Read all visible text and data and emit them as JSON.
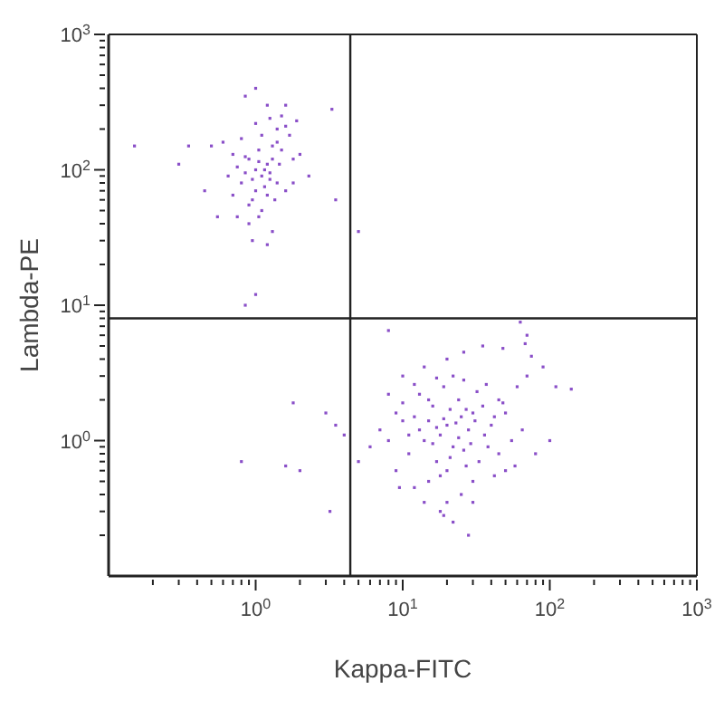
{
  "chart_data": {
    "type": "scatter",
    "xlabel": "Kappa-FITC",
    "ylabel": "Lambda-PE",
    "log": "xy",
    "marker": "square",
    "xlim": [
      0.1,
      1000
    ],
    "ylim": [
      0.1,
      1000
    ],
    "xticks": [
      {
        "value": 0.2,
        "label": null
      },
      {
        "value": 0.3,
        "label": null
      },
      {
        "value": 0.4,
        "label": null
      },
      {
        "value": 0.5,
        "label": null
      },
      {
        "value": 0.6,
        "label": null
      },
      {
        "value": 0.7,
        "label": null
      },
      {
        "value": 0.8,
        "label": null
      },
      {
        "value": 0.9,
        "label": null
      },
      {
        "value": 1,
        "label": "10$^{0}$"
      },
      {
        "value": 2,
        "label": null
      },
      {
        "value": 3,
        "label": null
      },
      {
        "value": 4,
        "label": null
      },
      {
        "value": 5,
        "label": null
      },
      {
        "value": 6,
        "label": null
      },
      {
        "value": 7,
        "label": null
      },
      {
        "value": 8,
        "label": null
      },
      {
        "value": 9,
        "label": null
      },
      {
        "value": 10,
        "label": "10$^{1}$"
      },
      {
        "value": 20,
        "label": null
      },
      {
        "value": 30,
        "label": null
      },
      {
        "value": 40,
        "label": null
      },
      {
        "value": 50,
        "label": null
      },
      {
        "value": 60,
        "label": null
      },
      {
        "value": 70,
        "label": null
      },
      {
        "value": 80,
        "label": null
      },
      {
        "value": 90,
        "label": null
      },
      {
        "value": 100,
        "label": "10$^{2}$"
      },
      {
        "value": 200,
        "label": null
      },
      {
        "value": 300,
        "label": null
      },
      {
        "value": 400,
        "label": null
      },
      {
        "value": 500,
        "label": null
      },
      {
        "value": 600,
        "label": null
      },
      {
        "value": 700,
        "label": null
      },
      {
        "value": 800,
        "label": null
      },
      {
        "value": 900,
        "label": null
      },
      {
        "value": 1000,
        "label": "10$^{3}$"
      }
    ],
    "yticks": [
      {
        "value": 0.2,
        "label": null
      },
      {
        "value": 0.3,
        "label": null
      },
      {
        "value": 0.4,
        "label": null
      },
      {
        "value": 0.5,
        "label": null
      },
      {
        "value": 0.6,
        "label": null
      },
      {
        "value": 0.7,
        "label": null
      },
      {
        "value": 0.8,
        "label": null
      },
      {
        "value": 0.9,
        "label": null
      },
      {
        "value": 1,
        "label": "10$^{0}$"
      },
      {
        "value": 2,
        "label": null
      },
      {
        "value": 3,
        "label": null
      },
      {
        "value": 4,
        "label": null
      },
      {
        "value": 5,
        "label": null
      },
      {
        "value": 6,
        "label": null
      },
      {
        "value": 7,
        "label": null
      },
      {
        "value": 8,
        "label": null
      },
      {
        "value": 9,
        "label": null
      },
      {
        "value": 10,
        "label": "10$^{1}$"
      },
      {
        "value": 20,
        "label": null
      },
      {
        "value": 30,
        "label": null
      },
      {
        "value": 40,
        "label": null
      },
      {
        "value": 50,
        "label": null
      },
      {
        "value": 60,
        "label": null
      },
      {
        "value": 70,
        "label": null
      },
      {
        "value": 80,
        "label": null
      },
      {
        "value": 90,
        "label": null
      },
      {
        "value": 100,
        "label": "10$^{2}$"
      },
      {
        "value": 200,
        "label": null
      },
      {
        "value": 300,
        "label": null
      },
      {
        "value": 400,
        "label": null
      },
      {
        "value": 500,
        "label": null
      },
      {
        "value": 600,
        "label": null
      },
      {
        "value": 700,
        "label": null
      },
      {
        "value": 800,
        "label": null
      },
      {
        "value": 900,
        "label": null
      },
      {
        "value": 1000,
        "label": "10$^{3}$"
      }
    ],
    "ref_lines": [
      {
        "axis": "x",
        "value": 4.4,
        "color": "#222222"
      },
      {
        "axis": "y",
        "value": 8,
        "color": "#222222"
      }
    ],
    "series": [
      {
        "color": "#8a4fc8",
        "x": [
          1.0,
          0.9,
          1.1,
          1.2,
          0.8,
          1.3,
          0.7,
          1.0,
          1.4,
          1.5,
          0.95,
          1.05,
          0.85,
          1.15,
          0.75,
          1.25,
          1.6,
          1.7,
          0.6,
          0.5,
          0.55,
          1.1,
          0.9,
          1.3,
          1.2,
          1.0,
          0.85,
          1.8,
          2.0,
          0.65,
          0.7,
          1.35,
          1.45,
          0.8,
          1.0,
          1.1,
          1.25,
          1.4,
          0.9,
          1.05,
          0.95,
          1.2,
          1.6,
          1.8,
          0.45,
          0.35,
          2.3,
          3.5,
          3.3,
          1.0,
          0.85,
          0.15,
          0.3,
          1.3,
          1.15,
          0.95,
          1.05,
          1.25,
          0.85,
          1.4,
          1.5,
          0.75,
          1.9,
          1.6,
          1.2,
          5,
          20,
          25,
          18,
          30,
          15,
          22,
          28,
          12,
          35,
          40,
          17,
          20,
          24,
          14,
          10,
          9,
          11,
          13,
          16,
          19,
          26,
          32,
          45,
          50,
          60,
          70,
          55,
          45,
          38,
          30,
          25,
          20,
          18,
          22,
          28,
          15,
          12,
          9,
          8,
          7,
          6,
          5,
          4,
          3.5,
          3,
          2,
          1.8,
          0.8,
          1.6,
          3.2,
          10,
          14,
          20,
          26,
          35,
          48,
          68,
          75,
          90,
          110,
          140,
          100,
          80,
          65,
          58,
          42,
          33,
          36,
          42,
          48,
          27,
          23,
          21,
          19,
          17,
          24,
          26,
          16,
          13,
          11,
          21,
          18,
          29,
          31,
          37,
          22,
          17,
          12,
          8,
          9.5,
          14,
          19,
          30,
          50,
          63,
          70,
          8,
          10,
          15,
          27
        ],
        "values": [
          100,
          120,
          90,
          110,
          80,
          150,
          130,
          70,
          200,
          250,
          60,
          140,
          95,
          75,
          105,
          85,
          300,
          180,
          160,
          150,
          45,
          50,
          40,
          35,
          300,
          400,
          350,
          120,
          130,
          90,
          65,
          60,
          110,
          170,
          220,
          180,
          240,
          160,
          55,
          45,
          30,
          28,
          70,
          80,
          70,
          150,
          90,
          60,
          280,
          12,
          10,
          150,
          110,
          120,
          100,
          85,
          115,
          95,
          125,
          80,
          140,
          45,
          230,
          210,
          65,
          35,
          1.3,
          1.5,
          1.1,
          1.6,
          1.4,
          0.9,
          1.2,
          1.5,
          1.8,
          1.3,
          0.7,
          0.6,
          2.0,
          1.0,
          1.4,
          1.6,
          0.8,
          2.2,
          1.8,
          2.5,
          2.8,
          2.3,
          2.0,
          1.6,
          2.5,
          3.0,
          1.0,
          0.8,
          0.9,
          0.5,
          0.4,
          0.35,
          0.3,
          0.25,
          0.2,
          0.5,
          0.45,
          0.6,
          1.0,
          1.2,
          0.9,
          0.7,
          1.1,
          1.3,
          1.6,
          0.6,
          1.9,
          0.7,
          0.65,
          0.3,
          3.0,
          3.5,
          4.0,
          4.5,
          5.0,
          4.8,
          5.2,
          4.2,
          3.5,
          2.5,
          2.4,
          1.0,
          0.8,
          1.2,
          0.65,
          0.55,
          0.7,
          1.1,
          1.5,
          1.9,
          1.7,
          1.35,
          1.7,
          1.45,
          1.25,
          1.05,
          0.85,
          0.95,
          1.2,
          1.1,
          0.75,
          0.55,
          0.95,
          1.4,
          2.6,
          3.0,
          2.9,
          2.6,
          2.2,
          0.45,
          0.35,
          0.28,
          0.35,
          0.6,
          7.5,
          6.0,
          6.5,
          1.9,
          2.0,
          0.65
        ]
      }
    ]
  }
}
